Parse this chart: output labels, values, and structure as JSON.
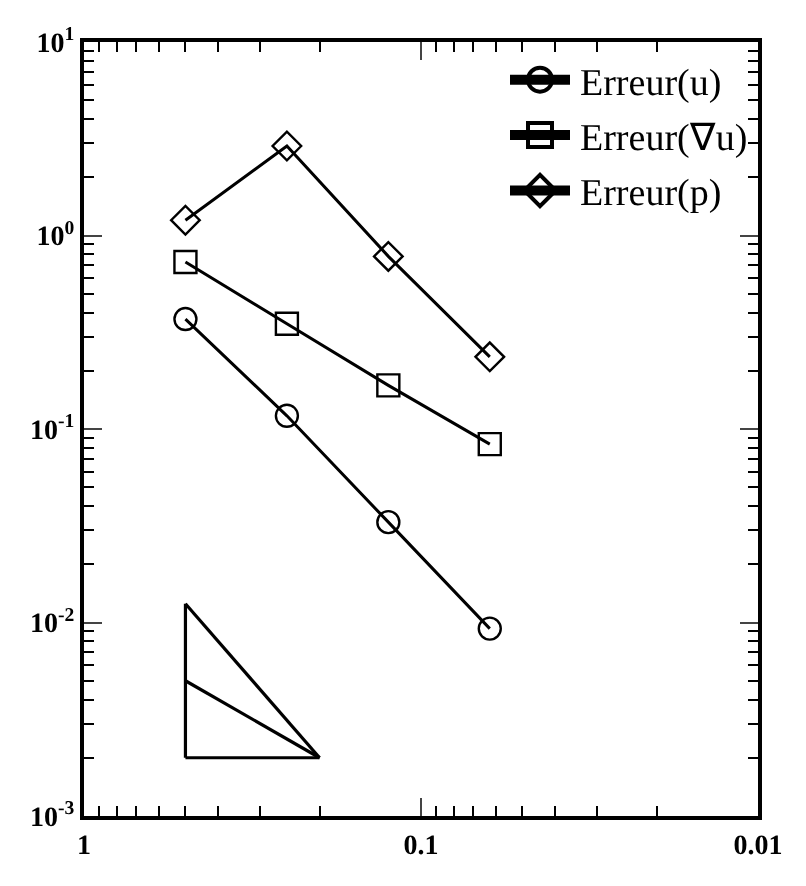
{
  "chart_data": {
    "type": "line",
    "log": "xy",
    "x": [
      0.5,
      0.25,
      0.125,
      0.0625
    ],
    "series": [
      {
        "name": "Erreur(u)",
        "color": "#000000",
        "marker": "circle",
        "values": [
          0.37,
          0.117,
          0.033,
          0.0093
        ]
      },
      {
        "name": "Erreur(∇u)",
        "color": "#000000",
        "marker": "square",
        "values": [
          0.73,
          0.35,
          0.168,
          0.0835
        ]
      },
      {
        "name": "Erreur(p)",
        "color": "#000000",
        "marker": "diamond",
        "values": [
          1.2,
          2.9,
          0.78,
          0.236
        ]
      }
    ],
    "xlim": [
      1,
      0.01
    ],
    "ylim": [
      0.001,
      10
    ],
    "xticks": [
      1,
      {
        "value": 0.9,
        "label": null
      },
      {
        "value": 0.8,
        "label": null
      },
      {
        "value": 0.7,
        "label": null
      },
      {
        "value": 0.6,
        "label": null
      },
      {
        "value": 0.5,
        "label": null
      },
      {
        "value": 0.4,
        "label": null
      },
      {
        "value": 0.3,
        "label": null
      },
      {
        "value": 0.2,
        "label": null
      },
      0.1,
      {
        "value": 0.09,
        "label": null
      },
      {
        "value": 0.08,
        "label": null
      },
      {
        "value": 0.07,
        "label": null
      },
      {
        "value": 0.06,
        "label": null
      },
      {
        "value": 0.05,
        "label": null
      },
      {
        "value": 0.04,
        "label": null
      },
      {
        "value": 0.03,
        "label": null
      },
      {
        "value": 0.02,
        "label": null
      },
      0.01
    ],
    "yticks": [
      {
        "value": 0.001,
        "label": "10$^{-3}$"
      },
      {
        "value": 0.002,
        "label": null
      },
      {
        "value": 0.003,
        "label": null
      },
      {
        "value": 0.004,
        "label": null
      },
      {
        "value": 0.005,
        "label": null
      },
      {
        "value": 0.006,
        "label": null
      },
      {
        "value": 0.007,
        "label": null
      },
      {
        "value": 0.008,
        "label": null
      },
      {
        "value": 0.009,
        "label": null
      },
      {
        "value": 0.01,
        "label": "10$^{-2}$"
      },
      {
        "value": 0.02,
        "label": null
      },
      {
        "value": 0.03,
        "label": null
      },
      {
        "value": 0.04,
        "label": null
      },
      {
        "value": 0.05,
        "label": null
      },
      {
        "value": 0.06,
        "label": null
      },
      {
        "value": 0.07,
        "label": null
      },
      {
        "value": 0.08,
        "label": null
      },
      {
        "value": 0.09,
        "label": null
      },
      {
        "value": 0.1,
        "label": "10$^{-1}$"
      },
      {
        "value": 0.2,
        "label": null
      },
      {
        "value": 0.3,
        "label": null
      },
      {
        "value": 0.4,
        "label": null
      },
      {
        "value": 0.5,
        "label": null
      },
      {
        "value": 0.6,
        "label": null
      },
      {
        "value": 0.7,
        "label": null
      },
      {
        "value": 0.8,
        "label": null
      },
      {
        "value": 0.9,
        "label": null
      },
      {
        "value": 1,
        "label": "10$^{0}$"
      },
      {
        "value": 2,
        "label": null
      },
      {
        "value": 3,
        "label": null
      },
      {
        "value": 4,
        "label": null
      },
      {
        "value": 5,
        "label": null
      },
      {
        "value": 6,
        "label": null
      },
      {
        "value": 7,
        "label": null
      },
      {
        "value": 8,
        "label": null
      },
      {
        "value": 9,
        "label": null
      },
      {
        "value": 10,
        "label": "10$^{1}$"
      }
    ],
    "legend": "top right",
    "grid": false,
    "line_style": "solid"
  }
}
